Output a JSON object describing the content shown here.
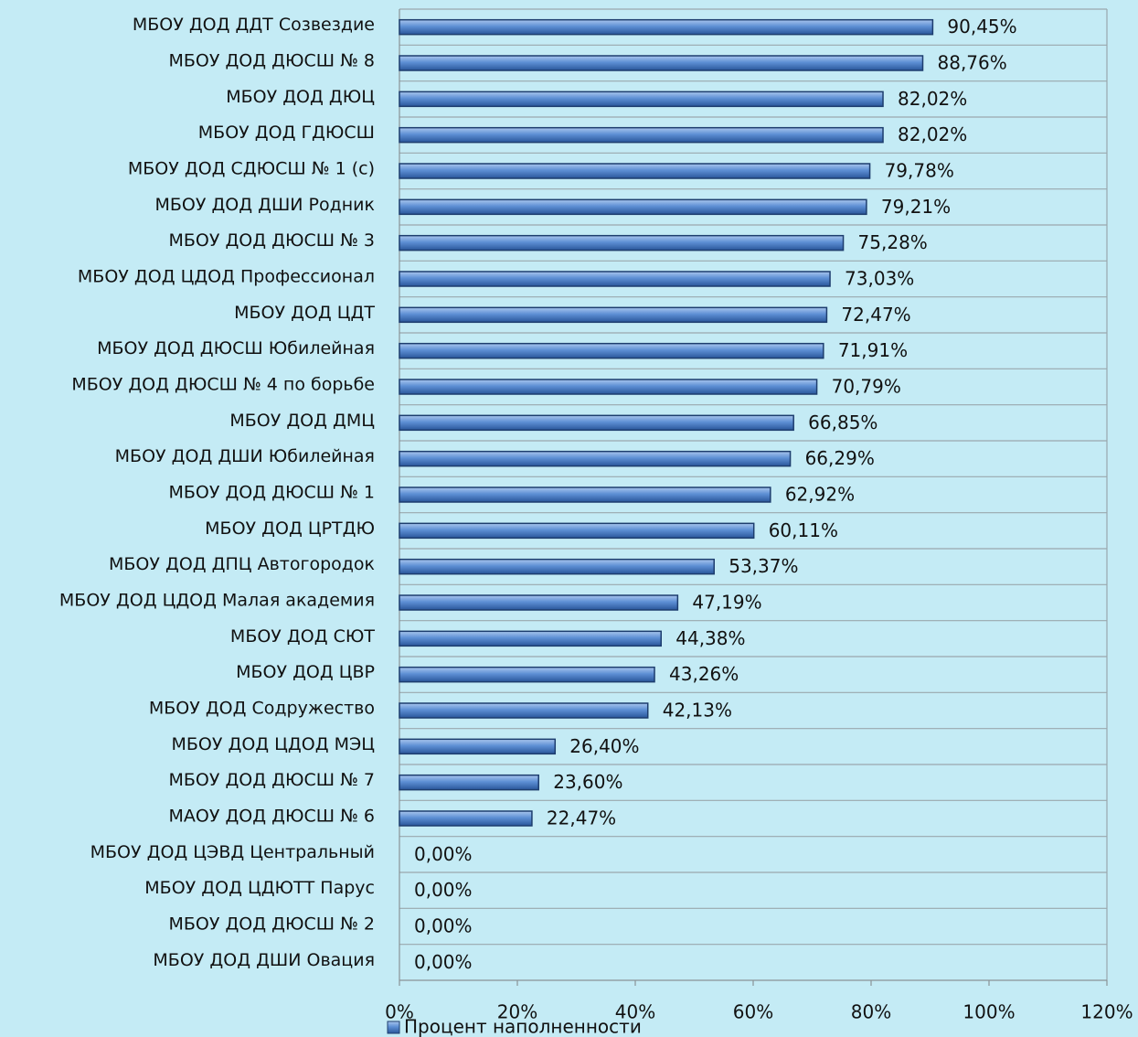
{
  "chart_data": {
    "type": "bar",
    "orientation": "horizontal",
    "categories": [
      "МБОУ ДОД ДДТ Созвездие",
      "МБОУ ДОД ДЮСШ № 8",
      "МБОУ ДОД ДЮЦ",
      "МБОУ ДОД ГДЮСШ",
      "МБОУ ДОД СДЮСШ № 1 (с)",
      "МБОУ ДОД ДШИ Родник",
      "МБОУ ДОД ДЮСШ № 3",
      "МБОУ ДОД ЦДОД Профессионал",
      "МБОУ ДОД ЦДТ",
      "МБОУ ДОД ДЮСШ Юбилейная",
      "МБОУ ДОД ДЮСШ № 4 по борьбе",
      "МБОУ ДОД ДМЦ",
      "МБОУ ДОД ДШИ Юбилейная",
      "МБОУ ДОД ДЮСШ № 1",
      "МБОУ ДОД ЦРТДЮ",
      "МБОУ ДОД ДПЦ Автогородок",
      "МБОУ ДОД ЦДОД Малая академия",
      "МБОУ ДОД СЮТ",
      "МБОУ ДОД ЦВР",
      "МБОУ ДОД Содружество",
      "МБОУ ДОД ЦДОД МЭЦ",
      "МБОУ ДОД ДЮСШ № 7",
      "МАОУ ДОД ДЮСШ № 6",
      "МБОУ ДОД ЦЭВД Центральный",
      "МБОУ ДОД ЦДЮТТ Парус",
      "МБОУ ДОД ДЮСШ № 2",
      "МБОУ ДОД ДШИ Овация"
    ],
    "series": [
      {
        "name": "Процент наполненности",
        "color": "#4f81bd",
        "values": [
          90.45,
          88.76,
          82.02,
          82.02,
          79.78,
          79.21,
          75.28,
          73.03,
          72.47,
          71.91,
          70.79,
          66.85,
          66.29,
          62.92,
          60.11,
          53.37,
          47.19,
          44.38,
          43.26,
          42.13,
          26.4,
          23.6,
          22.47,
          0,
          0,
          0,
          0
        ],
        "value_labels": [
          "90,45%",
          "88,76%",
          "82,02%",
          "82,02%",
          "79,78%",
          "79,21%",
          "75,28%",
          "73,03%",
          "72,47%",
          "71,91%",
          "70,79%",
          "66,85%",
          "66,29%",
          "62,92%",
          "60,11%",
          "53,37%",
          "47,19%",
          "44,38%",
          "43,26%",
          "42,13%",
          "26,40%",
          "23,60%",
          "22,47%",
          "0,00%",
          "0,00%",
          "0,00%",
          "0,00%"
        ]
      }
    ],
    "xlim": [
      0,
      120
    ],
    "xticks": [
      {
        "value": 0,
        "label": "0%"
      },
      {
        "value": 20,
        "label": "20%"
      },
      {
        "value": 40,
        "label": "40%"
      },
      {
        "value": 60,
        "label": "60%"
      },
      {
        "value": 80,
        "label": "80%"
      },
      {
        "value": 100,
        "label": "100%"
      },
      {
        "value": 120,
        "label": "120%"
      }
    ],
    "legend": "bottom"
  }
}
